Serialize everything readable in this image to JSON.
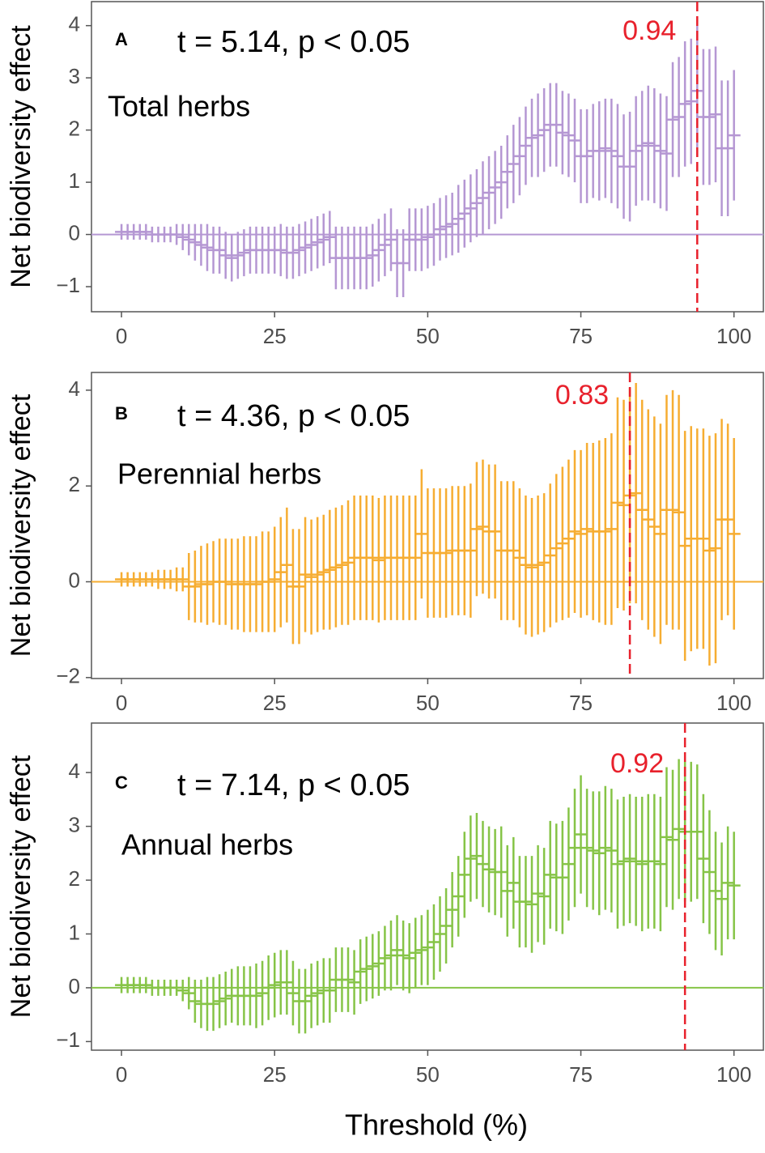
{
  "x_label": "Threshold (%)",
  "chart_data": [
    {
      "type": "errorbar",
      "panel": "A",
      "stat_text": "t = 5.14, p < 0.05",
      "label": "Total herbs",
      "y_label": "Net biodiversity effect",
      "color": "#b597d3",
      "ref_color": "#e8212c",
      "threshold": 94,
      "threshold_label": "0.94",
      "xlim": [
        -4.9,
        104.8
      ],
      "xticks": [
        0,
        25,
        50,
        75,
        100
      ],
      "ylim": [
        -1.48,
        4.46
      ],
      "yticks": [
        {
          "value": -1,
          "label": "−1"
        },
        0,
        1,
        2,
        3,
        4
      ],
      "x": [
        0,
        1,
        2,
        3,
        4,
        5,
        6,
        7,
        8,
        9,
        10,
        11,
        12,
        13,
        14,
        15,
        16,
        17,
        18,
        19,
        20,
        21,
        22,
        23,
        24,
        25,
        26,
        27,
        28,
        29,
        30,
        31,
        32,
        33,
        34,
        35,
        36,
        37,
        38,
        39,
        40,
        41,
        42,
        43,
        44,
        45,
        46,
        47,
        48,
        49,
        50,
        51,
        52,
        53,
        54,
        55,
        56,
        57,
        58,
        59,
        60,
        61,
        62,
        63,
        64,
        65,
        66,
        67,
        68,
        69,
        70,
        71,
        72,
        73,
        74,
        75,
        76,
        77,
        78,
        79,
        80,
        81,
        82,
        83,
        84,
        85,
        86,
        87,
        88,
        89,
        90,
        91,
        92,
        93,
        94,
        95,
        96,
        97,
        98,
        99,
        100
      ],
      "values": [
        0.05,
        0.05,
        0.05,
        0.05,
        0.05,
        0.0,
        0.0,
        0.0,
        0.0,
        0.0,
        -0.05,
        -0.1,
        -0.15,
        -0.2,
        -0.25,
        -0.3,
        -0.3,
        -0.4,
        -0.45,
        -0.4,
        -0.35,
        -0.3,
        -0.3,
        -0.3,
        -0.3,
        -0.3,
        -0.3,
        -0.35,
        -0.35,
        -0.3,
        -0.25,
        -0.2,
        -0.15,
        -0.1,
        -0.05,
        -0.45,
        -0.45,
        -0.45,
        -0.45,
        -0.45,
        -0.45,
        -0.4,
        -0.3,
        -0.2,
        -0.1,
        -0.55,
        -0.55,
        -0.1,
        -0.1,
        -0.1,
        -0.05,
        0.0,
        0.1,
        0.15,
        0.2,
        0.3,
        0.4,
        0.5,
        0.6,
        0.7,
        0.8,
        0.9,
        1.0,
        1.2,
        1.35,
        1.5,
        1.7,
        1.85,
        1.9,
        2.0,
        2.1,
        2.1,
        1.95,
        1.9,
        1.8,
        1.5,
        1.5,
        1.6,
        1.6,
        1.65,
        1.6,
        1.5,
        1.3,
        1.3,
        1.6,
        1.7,
        1.75,
        1.7,
        1.6,
        1.55,
        2.2,
        2.25,
        2.5,
        2.55,
        2.75,
        2.25,
        2.25,
        2.3,
        1.65,
        1.65,
        1.9
      ],
      "errors": [
        0.15,
        0.15,
        0.15,
        0.15,
        0.15,
        0.15,
        0.15,
        0.15,
        0.15,
        0.2,
        0.25,
        0.3,
        0.35,
        0.4,
        0.45,
        0.45,
        0.45,
        0.45,
        0.45,
        0.45,
        0.45,
        0.45,
        0.45,
        0.45,
        0.45,
        0.45,
        0.5,
        0.5,
        0.5,
        0.5,
        0.5,
        0.5,
        0.5,
        0.5,
        0.5,
        0.6,
        0.6,
        0.6,
        0.6,
        0.6,
        0.6,
        0.6,
        0.6,
        0.6,
        0.6,
        0.65,
        0.65,
        0.6,
        0.6,
        0.6,
        0.6,
        0.6,
        0.6,
        0.6,
        0.6,
        0.65,
        0.65,
        0.65,
        0.65,
        0.7,
        0.7,
        0.7,
        0.7,
        0.7,
        0.75,
        0.75,
        0.75,
        0.75,
        0.8,
        0.8,
        0.8,
        0.8,
        0.8,
        0.8,
        0.8,
        0.9,
        0.9,
        0.9,
        0.95,
        0.95,
        1.0,
        1.0,
        1.0,
        1.05,
        1.05,
        1.05,
        1.1,
        1.1,
        1.1,
        1.1,
        1.1,
        1.15,
        1.2,
        1.2,
        1.25,
        1.3,
        1.3,
        1.3,
        1.3,
        1.3,
        1.25
      ]
    },
    {
      "type": "errorbar",
      "panel": "B",
      "stat_text": "t = 4.36, p < 0.05",
      "label": "Perennial herbs",
      "y_label": "Net biodiversity effect",
      "color": "#f6ad32",
      "ref_color": "#e8212c",
      "threshold": 83,
      "threshold_label": "0.83",
      "xlim": [
        -4.9,
        104.8
      ],
      "xticks": [
        0,
        25,
        50,
        75,
        100
      ],
      "ylim": [
        -2.02,
        4.37
      ],
      "yticks": [
        {
          "value": -2,
          "label": "−2"
        },
        0,
        2,
        4
      ],
      "x": [
        0,
        1,
        2,
        3,
        4,
        5,
        6,
        7,
        8,
        9,
        10,
        11,
        12,
        13,
        14,
        15,
        16,
        17,
        18,
        19,
        20,
        21,
        22,
        23,
        24,
        25,
        26,
        27,
        28,
        29,
        30,
        31,
        32,
        33,
        34,
        35,
        36,
        37,
        38,
        39,
        40,
        41,
        42,
        43,
        44,
        45,
        46,
        47,
        48,
        49,
        50,
        51,
        52,
        53,
        54,
        55,
        56,
        57,
        58,
        59,
        60,
        61,
        62,
        63,
        64,
        65,
        66,
        67,
        68,
        69,
        70,
        71,
        72,
        73,
        74,
        75,
        76,
        77,
        78,
        79,
        80,
        81,
        82,
        83,
        84,
        85,
        86,
        87,
        88,
        89,
        90,
        91,
        92,
        93,
        94,
        95,
        96,
        97,
        98,
        99,
        100
      ],
      "values": [
        0.05,
        0.05,
        0.05,
        0.05,
        0.05,
        0.05,
        0.05,
        0.05,
        0.05,
        0.05,
        0.05,
        -0.1,
        -0.1,
        -0.05,
        -0.05,
        0.0,
        0.0,
        0.0,
        -0.05,
        -0.05,
        -0.05,
        -0.05,
        -0.05,
        0.0,
        0.0,
        0.05,
        0.2,
        0.35,
        -0.1,
        -0.1,
        0.15,
        0.1,
        0.15,
        0.2,
        0.25,
        0.3,
        0.35,
        0.4,
        0.5,
        0.5,
        0.5,
        0.5,
        0.45,
        0.5,
        0.5,
        0.5,
        0.5,
        0.5,
        0.5,
        1.0,
        0.6,
        0.6,
        0.6,
        0.6,
        0.65,
        0.65,
        0.65,
        0.65,
        1.1,
        1.15,
        1.05,
        1.05,
        0.65,
        0.65,
        0.65,
        0.5,
        0.35,
        0.3,
        0.35,
        0.4,
        0.55,
        0.7,
        0.8,
        0.9,
        1.05,
        1.0,
        1.1,
        1.05,
        1.05,
        1.05,
        1.1,
        1.65,
        1.6,
        1.8,
        1.85,
        1.5,
        1.3,
        1.15,
        1.0,
        1.5,
        1.5,
        1.45,
        0.75,
        0.9,
        0.9,
        0.9,
        0.65,
        0.7,
        1.3,
        1.3,
        1.0
      ],
      "errors": [
        0.15,
        0.15,
        0.15,
        0.15,
        0.15,
        0.15,
        0.2,
        0.2,
        0.2,
        0.25,
        0.25,
        0.7,
        0.75,
        0.8,
        0.85,
        0.85,
        0.9,
        0.9,
        0.95,
        0.95,
        1.0,
        1.0,
        1.0,
        1.05,
        1.05,
        1.1,
        1.15,
        1.2,
        1.2,
        1.2,
        1.2,
        1.2,
        1.2,
        1.2,
        1.25,
        1.25,
        1.25,
        1.3,
        1.3,
        1.3,
        1.3,
        1.3,
        1.3,
        1.3,
        1.3,
        1.3,
        1.3,
        1.3,
        1.3,
        1.35,
        1.35,
        1.35,
        1.35,
        1.35,
        1.35,
        1.35,
        1.35,
        1.4,
        1.4,
        1.4,
        1.4,
        1.4,
        1.45,
        1.45,
        1.45,
        1.45,
        1.45,
        1.45,
        1.45,
        1.45,
        1.5,
        1.55,
        1.6,
        1.65,
        1.7,
        1.75,
        1.8,
        1.85,
        1.9,
        1.95,
        2.0,
        2.2,
        2.2,
        2.25,
        2.3,
        2.3,
        2.3,
        2.3,
        2.3,
        2.4,
        2.5,
        2.45,
        2.4,
        2.35,
        2.3,
        2.3,
        2.4,
        2.4,
        2.1,
        2.0,
        2.0
      ]
    },
    {
      "type": "errorbar",
      "panel": "C",
      "stat_text": "t = 7.14, p < 0.05",
      "label": "Annual herbs",
      "y_label": "Net biodiversity effect",
      "color": "#86c447",
      "ref_color": "#e8212c",
      "threshold": 92,
      "threshold_label": "0.92",
      "xlim": [
        -4.9,
        104.8
      ],
      "xticks": [
        0,
        25,
        50,
        75,
        100
      ],
      "ylim": [
        -1.16,
        4.92
      ],
      "yticks": [
        {
          "value": -1,
          "label": "−1"
        },
        0,
        1,
        2,
        3,
        4
      ],
      "x": [
        0,
        1,
        2,
        3,
        4,
        5,
        6,
        7,
        8,
        9,
        10,
        11,
        12,
        13,
        14,
        15,
        16,
        17,
        18,
        19,
        20,
        21,
        22,
        23,
        24,
        25,
        26,
        27,
        28,
        29,
        30,
        31,
        32,
        33,
        34,
        35,
        36,
        37,
        38,
        39,
        40,
        41,
        42,
        43,
        44,
        45,
        46,
        47,
        48,
        49,
        50,
        51,
        52,
        53,
        54,
        55,
        56,
        57,
        58,
        59,
        60,
        61,
        62,
        63,
        64,
        65,
        66,
        67,
        68,
        69,
        70,
        71,
        72,
        73,
        74,
        75,
        76,
        77,
        78,
        79,
        80,
        81,
        82,
        83,
        84,
        85,
        86,
        87,
        88,
        89,
        90,
        91,
        92,
        93,
        94,
        95,
        96,
        97,
        98,
        99,
        100
      ],
      "values": [
        0.05,
        0.05,
        0.05,
        0.05,
        0.05,
        0.0,
        0.0,
        0.0,
        0.0,
        0.0,
        -0.05,
        -0.1,
        -0.25,
        -0.3,
        -0.3,
        -0.3,
        -0.25,
        -0.2,
        -0.15,
        -0.15,
        -0.15,
        -0.15,
        -0.15,
        -0.1,
        0.0,
        0.05,
        0.1,
        0.1,
        -0.1,
        -0.25,
        -0.25,
        -0.15,
        -0.1,
        -0.05,
        -0.05,
        0.15,
        0.15,
        0.15,
        0.1,
        0.3,
        0.35,
        0.4,
        0.45,
        0.55,
        0.6,
        0.7,
        0.6,
        0.55,
        0.65,
        0.7,
        0.75,
        0.85,
        1.0,
        1.15,
        1.45,
        1.7,
        2.1,
        2.4,
        2.45,
        2.3,
        2.2,
        2.15,
        2.15,
        1.8,
        1.95,
        1.6,
        1.6,
        1.55,
        1.75,
        1.7,
        2.1,
        2.05,
        2.05,
        2.3,
        2.6,
        2.85,
        2.6,
        2.55,
        2.5,
        2.6,
        2.55,
        2.3,
        2.35,
        2.4,
        2.35,
        2.3,
        2.35,
        2.35,
        2.3,
        2.8,
        2.75,
        2.95,
        2.9,
        2.9,
        2.9,
        2.4,
        2.15,
        1.8,
        1.65,
        1.95,
        1.9
      ],
      "errors": [
        0.15,
        0.15,
        0.15,
        0.15,
        0.15,
        0.15,
        0.15,
        0.15,
        0.15,
        0.15,
        0.2,
        0.3,
        0.4,
        0.45,
        0.5,
        0.5,
        0.5,
        0.5,
        0.5,
        0.55,
        0.55,
        0.55,
        0.6,
        0.6,
        0.6,
        0.6,
        0.6,
        0.6,
        0.6,
        0.6,
        0.6,
        0.6,
        0.6,
        0.6,
        0.6,
        0.6,
        0.6,
        0.6,
        0.6,
        0.6,
        0.6,
        0.6,
        0.6,
        0.6,
        0.65,
        0.65,
        0.65,
        0.65,
        0.65,
        0.65,
        0.7,
        0.7,
        0.7,
        0.7,
        0.7,
        0.75,
        0.8,
        0.8,
        0.8,
        0.8,
        0.8,
        0.8,
        0.85,
        0.85,
        0.85,
        0.85,
        0.85,
        0.9,
        0.9,
        0.9,
        1.0,
        1.0,
        1.05,
        1.05,
        1.1,
        1.1,
        1.1,
        1.1,
        1.15,
        1.15,
        1.15,
        1.2,
        1.2,
        1.2,
        1.2,
        1.25,
        1.25,
        1.25,
        1.25,
        1.3,
        1.3,
        1.3,
        1.3,
        1.3,
        1.25,
        1.2,
        1.15,
        1.1,
        1.05,
        1.05,
        1.0
      ]
    }
  ]
}
